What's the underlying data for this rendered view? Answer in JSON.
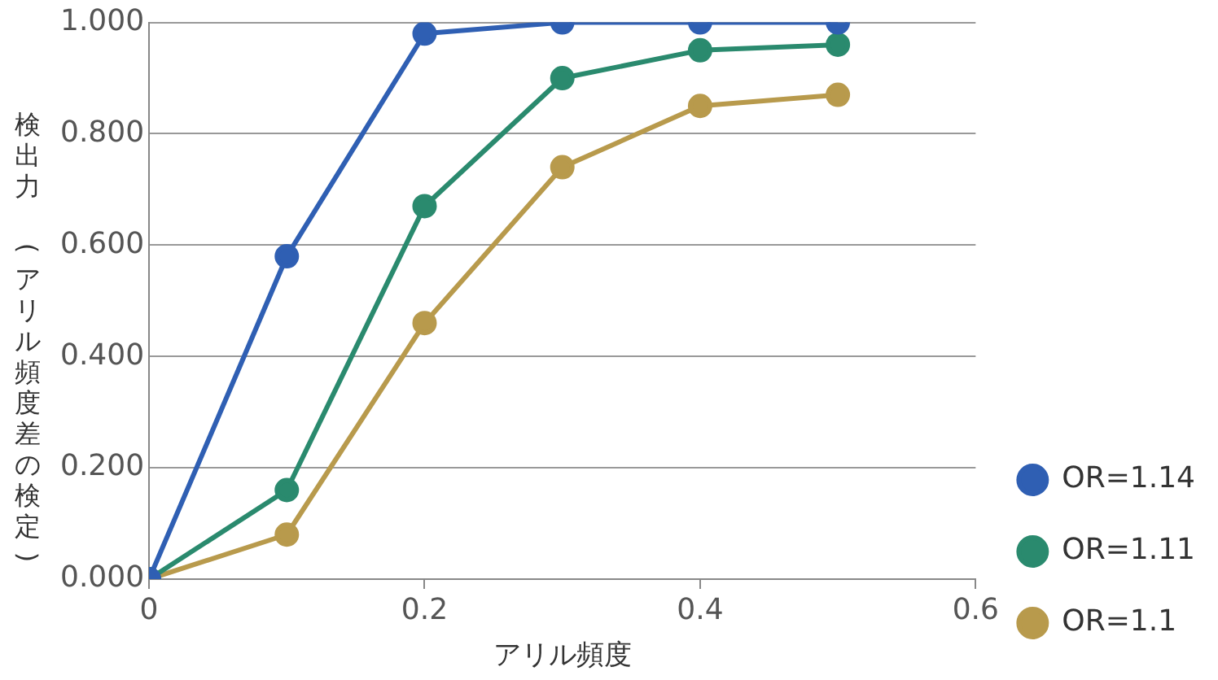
{
  "chart_data": {
    "type": "line",
    "xlabel": "アリル頻度",
    "ylabel": "検出力　(アリル頻度差の検定)",
    "x": [
      0,
      0.1,
      0.2,
      0.3,
      0.4,
      0.5
    ],
    "series": [
      {
        "name": "OR=1.14",
        "color": "#2f5fb3",
        "values": [
          0,
          0.58,
          0.98,
          1.0,
          1.0,
          1.0
        ]
      },
      {
        "name": "OR=1.11",
        "color": "#2a8a6e",
        "values": [
          0,
          0.16,
          0.67,
          0.9,
          0.95,
          0.96
        ]
      },
      {
        "name": "OR=1.1",
        "color": "#b89a4c",
        "values": [
          0,
          0.08,
          0.46,
          0.74,
          0.85,
          0.87
        ]
      }
    ],
    "xlim": [
      0,
      0.6
    ],
    "xticks": [
      0,
      0.2,
      0.4,
      0.6
    ],
    "ylim": [
      0,
      1
    ],
    "yticks": [
      {
        "value": 0,
        "label": "0.000"
      },
      {
        "value": 0.2,
        "label": "0.200"
      },
      {
        "value": 0.4,
        "label": "0.400"
      },
      {
        "value": 0.6,
        "label": "0.600"
      },
      {
        "value": 0.8,
        "label": "0.800"
      },
      {
        "value": 1,
        "label": "1.000"
      }
    ],
    "grid": "y",
    "legend": "right",
    "marker": "circle",
    "line_style": "solid"
  }
}
